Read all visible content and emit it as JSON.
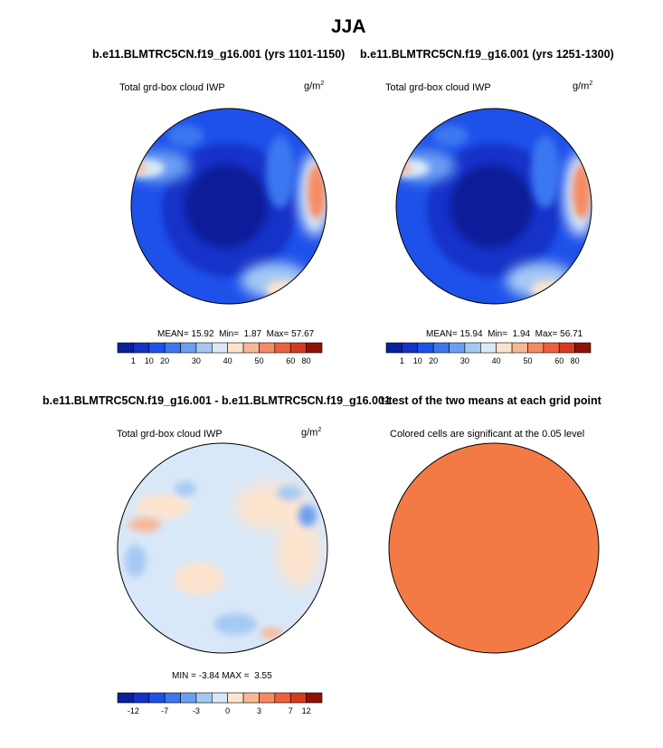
{
  "main_title": "JJA",
  "palettes": {
    "abs": [
      "#0a1f9a",
      "#1332c8",
      "#1e51ea",
      "#3a77f0",
      "#6c9ff2",
      "#a6c9f4",
      "#dceaf8",
      "#fde4cf",
      "#f8b896",
      "#f68a63",
      "#ee5f3d",
      "#d83a1e",
      "#8e1306"
    ],
    "diff": [
      "#0a1f9a",
      "#1332c8",
      "#1e51ea",
      "#3a77f0",
      "#6c9ff2",
      "#a6c9f4",
      "#d9e8f8",
      "#fde4cf",
      "#f8b896",
      "#f68a63",
      "#ee5f3d",
      "#d83a1e",
      "#8e1306"
    ]
  },
  "chart_data": [
    {
      "type": "map",
      "title": "b.e11.BLMTRC5CN.f19_g16.001 (yrs 1101-1150)",
      "variable": "Total grd-box cloud IWP",
      "units_base": "g/m",
      "units_exp": "2",
      "stats": {
        "mean_label": "MEAN=",
        "mean": "15.92",
        "min_label": "Min=",
        "min": "1.87",
        "max_label": "Max=",
        "max": "57.67"
      },
      "colorbar": {
        "palette": "abs",
        "tick_labels": [
          "1",
          "10",
          "20",
          "30",
          "40",
          "50",
          "60",
          "80"
        ]
      }
    },
    {
      "type": "map",
      "title": "b.e11.BLMTRC5CN.f19_g16.001 (yrs 1251-1300)",
      "variable": "Total grd-box cloud IWP",
      "units_base": "g/m",
      "units_exp": "2",
      "stats": {
        "mean_label": "MEAN=",
        "mean": "15.94",
        "min_label": "Min=",
        "min": "1.94",
        "max_label": "Max=",
        "max": "56.71"
      },
      "colorbar": {
        "palette": "abs",
        "tick_labels": [
          "1",
          "10",
          "20",
          "30",
          "40",
          "50",
          "60",
          "80"
        ]
      }
    },
    {
      "type": "map",
      "title": "b.e11.BLMTRC5CN.f19_g16.001 - b.e11.BLMTRC5CN.f19_g16.001",
      "variable": "Total grd-box cloud IWP",
      "units_base": "g/m",
      "units_exp": "2",
      "stats": {
        "min_label": "MIN =",
        "min": "-3.84",
        "max_label": "MAX =",
        "max": "3.55"
      },
      "colorbar": {
        "palette": "diff",
        "tick_labels": [
          "-12",
          "-7",
          "-3",
          "0",
          "3",
          "7",
          "12"
        ]
      }
    },
    {
      "type": "map",
      "title": "t-test of the two means at each grid point",
      "subtitle": "Colored cells are significant at the 0.05 level",
      "fill": "#f47a45"
    }
  ]
}
